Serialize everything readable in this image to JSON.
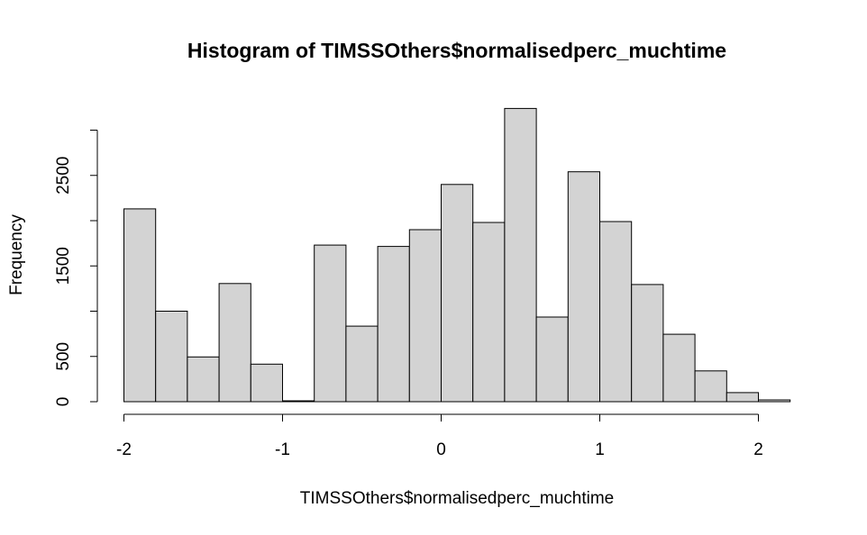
{
  "chart_data": {
    "type": "bar",
    "title": "Histogram of TIMSSOthers$normalisedperc_muchtime",
    "xlabel": "TIMSSOthers$normalisedperc_muchtime",
    "ylabel": "Frequency",
    "bin_width": 0.2,
    "bins": [
      {
        "x0": -2.0,
        "x1": -1.8,
        "count": 2130
      },
      {
        "x0": -1.8,
        "x1": -1.6,
        "count": 1000
      },
      {
        "x0": -1.6,
        "x1": -1.4,
        "count": 495
      },
      {
        "x0": -1.4,
        "x1": -1.2,
        "count": 1305
      },
      {
        "x0": -1.2,
        "x1": -1.0,
        "count": 415
      },
      {
        "x0": -1.0,
        "x1": -0.8,
        "count": 10
      },
      {
        "x0": -0.8,
        "x1": -0.6,
        "count": 1730
      },
      {
        "x0": -0.6,
        "x1": -0.4,
        "count": 835
      },
      {
        "x0": -0.4,
        "x1": -0.2,
        "count": 1715
      },
      {
        "x0": -0.2,
        "x1": 0.0,
        "count": 1900
      },
      {
        "x0": 0.0,
        "x1": 0.2,
        "count": 2400
      },
      {
        "x0": 0.2,
        "x1": 0.4,
        "count": 1980
      },
      {
        "x0": 0.4,
        "x1": 0.6,
        "count": 3240
      },
      {
        "x0": 0.6,
        "x1": 0.8,
        "count": 935
      },
      {
        "x0": 0.8,
        "x1": 1.0,
        "count": 2540
      },
      {
        "x0": 1.0,
        "x1": 1.2,
        "count": 1990
      },
      {
        "x0": 1.2,
        "x1": 1.4,
        "count": 1295
      },
      {
        "x0": 1.4,
        "x1": 1.6,
        "count": 745
      },
      {
        "x0": 1.6,
        "x1": 1.8,
        "count": 340
      },
      {
        "x0": 1.8,
        "x1": 2.0,
        "count": 100
      },
      {
        "x0": 2.0,
        "x1": 2.2,
        "count": 20
      }
    ],
    "x_ticks": [
      -2,
      -1,
      0,
      1,
      2
    ],
    "x_tick_labels": [
      "-2",
      "-1",
      "0",
      "1",
      "2"
    ],
    "y_ticks": [
      0,
      500,
      1000,
      1500,
      2000,
      2500,
      3000
    ],
    "y_tick_labels": [
      "0",
      "500",
      "",
      "1500",
      "",
      "2500",
      ""
    ],
    "xlim": [
      -2.0,
      2.2
    ],
    "ylim": [
      0,
      3300
    ],
    "grid": false,
    "legend": "none",
    "bar_fill": "#d3d3d3",
    "bar_stroke": "#000000"
  }
}
